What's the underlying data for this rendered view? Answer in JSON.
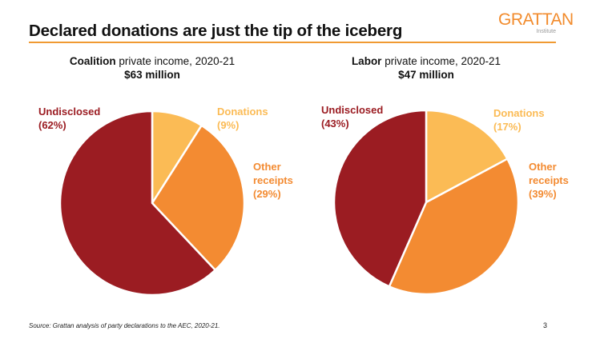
{
  "header": {
    "title": "Declared donations are just the tip of the iceberg",
    "logo_main": "GRATTAN",
    "logo_sub": "Institute"
  },
  "footer": {
    "source": "Source: Grattan analysis of party declarations to the AEC, 2020-21.",
    "page_number": "3"
  },
  "colors": {
    "undisclosed": "#9b1c22",
    "donations": "#fbbb55",
    "other_receipts": "#f38b32",
    "accent": "#f09a32"
  },
  "chart_data": [
    {
      "type": "pie",
      "party": "Coalition",
      "title_rest": " private income, 2020-21",
      "total": "$63 million",
      "slices": [
        {
          "key": "donations",
          "label": "Donations",
          "pct_label": "(9%)",
          "value": 9
        },
        {
          "key": "other_receipts",
          "label": "Other receipts",
          "pct_label": "(29%)",
          "value": 29
        },
        {
          "key": "undisclosed",
          "label": "Undisclosed",
          "pct_label": "(62%)",
          "value": 62
        }
      ]
    },
    {
      "type": "pie",
      "party": "Labor",
      "title_rest": " private income, 2020-21",
      "total": "$47 million",
      "slices": [
        {
          "key": "donations",
          "label": "Donations",
          "pct_label": "(17%)",
          "value": 17
        },
        {
          "key": "other_receipts",
          "label": "Other receipts",
          "pct_label": "(39%)",
          "value": 39
        },
        {
          "key": "undisclosed",
          "label": "Undisclosed",
          "pct_label": "(43%)",
          "value": 43
        }
      ]
    }
  ]
}
